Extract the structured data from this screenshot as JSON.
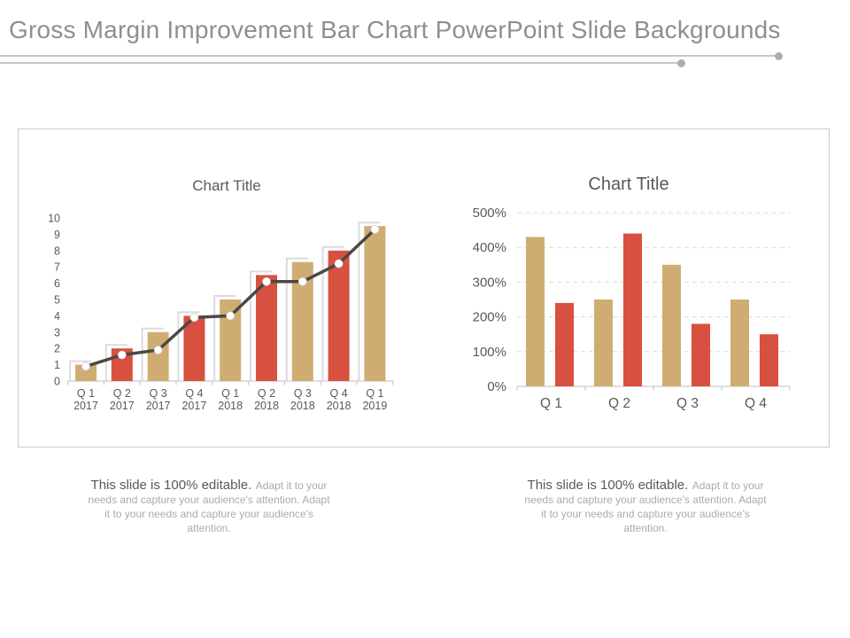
{
  "slide": {
    "title": "Gross Margin Improvement Bar Chart PowerPoint Slide Backgrounds"
  },
  "notes": {
    "lead": "This slide is 100% editable.",
    "body": "Adapt it to your needs and capture your audience's attention. Adapt it to your needs and capture your audience's attention."
  },
  "colors": {
    "tan": "#cfad72",
    "red": "#d8503f",
    "line": "#4a4745",
    "marker_fill": "#ffffff",
    "marker_stroke": "#cfcfcf",
    "axis": "#c9c9c9",
    "grid": "#d9d9d9",
    "shadow": "#dbdbdb",
    "label": "#595959",
    "title_gray": "#8f8f8f"
  },
  "chart_data": [
    {
      "type": "bar",
      "subtype": "clustered-column-with-line-overlay",
      "title": "Chart Title",
      "categories": [
        [
          "Q 1",
          "2017"
        ],
        [
          "Q 2",
          "2017"
        ],
        [
          "Q 3",
          "2017"
        ],
        [
          "Q 4",
          "2017"
        ],
        [
          "Q 1",
          "2018"
        ],
        [
          "Q 2",
          "2018"
        ],
        [
          "Q 3",
          "2018"
        ],
        [
          "Q 4",
          "2018"
        ],
        [
          "Q 1",
          "2019"
        ]
      ],
      "series": [
        {
          "name": "columns",
          "type": "bar",
          "values": [
            1,
            2,
            3,
            4,
            5,
            6.5,
            7.3,
            8,
            9.5
          ],
          "colors": [
            "tan",
            "red",
            "tan",
            "red",
            "tan",
            "red",
            "tan",
            "red",
            "tan"
          ]
        },
        {
          "name": "trend",
          "type": "line",
          "values": [
            0.9,
            1.6,
            1.9,
            3.9,
            4.0,
            6.1,
            6.1,
            7.2,
            9.3
          ],
          "color": "line"
        }
      ],
      "ylim": [
        0,
        10
      ],
      "yticks": [
        0,
        1,
        2,
        3,
        4,
        5,
        6,
        7,
        8,
        9,
        10
      ],
      "grid": false,
      "legend": "none"
    },
    {
      "type": "bar",
      "subtype": "clustered-column",
      "title": "Chart Title",
      "categories": [
        "Q 1",
        "Q 2",
        "Q 3",
        "Q 4"
      ],
      "series": [
        {
          "name": "series-1",
          "values": [
            430,
            250,
            350,
            250
          ],
          "color": "tan"
        },
        {
          "name": "series-2",
          "values": [
            240,
            440,
            180,
            150
          ],
          "color": "red"
        }
      ],
      "ylim": [
        0,
        500
      ],
      "yticks": [
        "0%",
        "100%",
        "200%",
        "300%",
        "400%",
        "500%"
      ],
      "grid": true,
      "grid_style": "dashed",
      "legend": "none"
    }
  ]
}
